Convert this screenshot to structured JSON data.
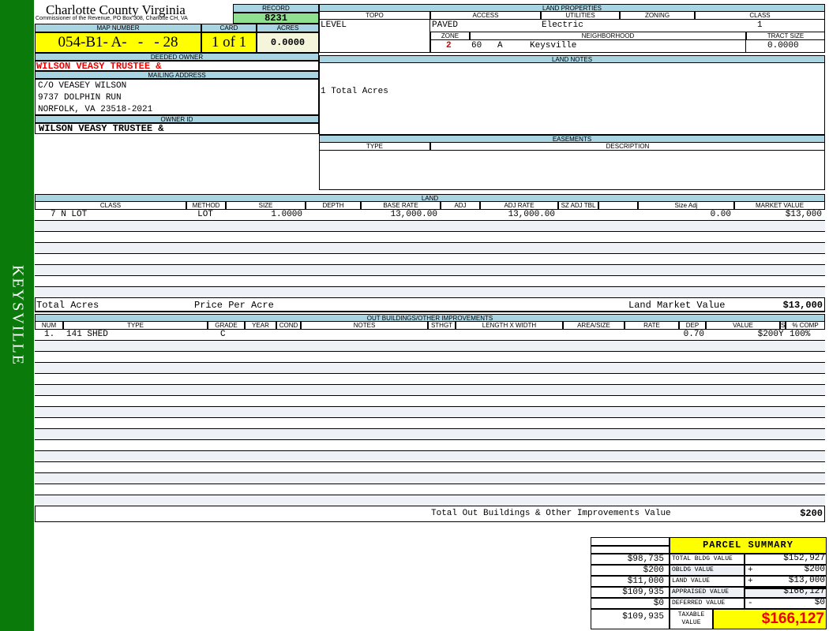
{
  "sidebar": {
    "label": "KEYSVILLE",
    "color": "#0a7a0a"
  },
  "header": {
    "title": "Charlotte County Virginia",
    "subtitle": "Commissioner of the Revenue, PO Box 308, Charlotte CH, VA",
    "record_label": "RECORD",
    "record": "8231",
    "map_label": "MAP NUMBER",
    "map_number": "054-B1- A-   -   - 28",
    "card_label": "CARD",
    "card": "1 of 1",
    "acres_label": "ACRES",
    "acres": "0.0000"
  },
  "owner": {
    "deeded_label": "DEEDED OWNER",
    "deeded": "WILSON VEASY TRUSTEE &",
    "mailing_label": "MAILING ADDRESS",
    "address": [
      "C/O VEASEY WILSON",
      "9737 DOLPHIN RUN",
      "NORFOLK, VA 23518-2021"
    ],
    "id_label": "OWNER ID",
    "id": "WILSON VEASY TRUSTEE &"
  },
  "land_properties": {
    "title": "LAND PROPERTIES",
    "topo_label": "TOPO",
    "access_label": "ACCESS",
    "utilities_label": "UTILITIES",
    "zoning_label": "ZONING",
    "class_label": "CLASS",
    "topo": "LEVEL",
    "access": "PAVED",
    "utilities": "Electric",
    "class": "1",
    "zone_label": "ZONE",
    "neighborhood_label": "NEIGHBORHOOD",
    "tract_label": "TRACT SIZE",
    "zone": "2",
    "neighborhood_code": "60   A",
    "neighborhood": "Keysville",
    "tract": "0.0000"
  },
  "land_notes": {
    "title": "LAND NOTES",
    "text": "1 Total Acres"
  },
  "easements": {
    "title": "EASEMENTS",
    "type_label": "TYPE",
    "description_label": "DESCRIPTION"
  },
  "land": {
    "title": "LAND",
    "columns": [
      "CLASS",
      "METHOD",
      "SIZE",
      "DEPTH",
      "BASE RATE",
      "ADJ",
      "ADJ RATE",
      "SZ ADJ TBL",
      "",
      "Size Adj",
      "MARKET VALUE"
    ],
    "rows": [
      [
        "7 N LOT",
        "LOT",
        "1.0000",
        "",
        "13,000.00",
        "",
        "13,000.00",
        "",
        "",
        "0.00",
        "$13,000"
      ]
    ],
    "total_acres_label": "Total Acres",
    "price_per_acre_label": "Price Per Acre",
    "market_label": "Land Market Value",
    "market_value": "$13,000"
  },
  "outbuildings": {
    "title": "OUT BUILDINGS/OTHER IMPROVEMENTS",
    "columns": [
      "NUM",
      "TYPE",
      "GRADE",
      "YEAR",
      "COND",
      "NOTES",
      "STHGT",
      "LENGTH X WIDTH",
      "AREA/SIZE",
      "RATE",
      "DEP",
      "VALUE",
      "S",
      "% COMP"
    ],
    "rows": [
      [
        "1.",
        "141 SHED",
        "C",
        "",
        "",
        "",
        "",
        "",
        "",
        "",
        "0.70",
        "$200",
        "Y",
        "100%"
      ]
    ],
    "total_label": "Total Out Buildings & Other Improvements Value",
    "total_value": "$200"
  },
  "summary": {
    "title": "PARCEL SUMMARY",
    "rows": [
      {
        "prior": "$98,735",
        "label": "TOTAL BLDG VALUE",
        "op": "",
        "value": "$152,927"
      },
      {
        "prior": "$200",
        "label": "OBLDG VALUE",
        "op": "+",
        "value": "$200"
      },
      {
        "prior": "$11,000",
        "label": "LAND VALUE",
        "op": "+",
        "value": "$13,000"
      },
      {
        "prior": "$109,935",
        "label": "APPRAISED VALUE",
        "op": "",
        "value": "$166,127"
      },
      {
        "prior": "$0",
        "label": "DEFERRED VALUE",
        "op": "-",
        "value": "$0"
      }
    ],
    "taxable_prior": "$109,935",
    "taxable_label": "TAXABLE VALUE",
    "taxable": "$166,127"
  }
}
